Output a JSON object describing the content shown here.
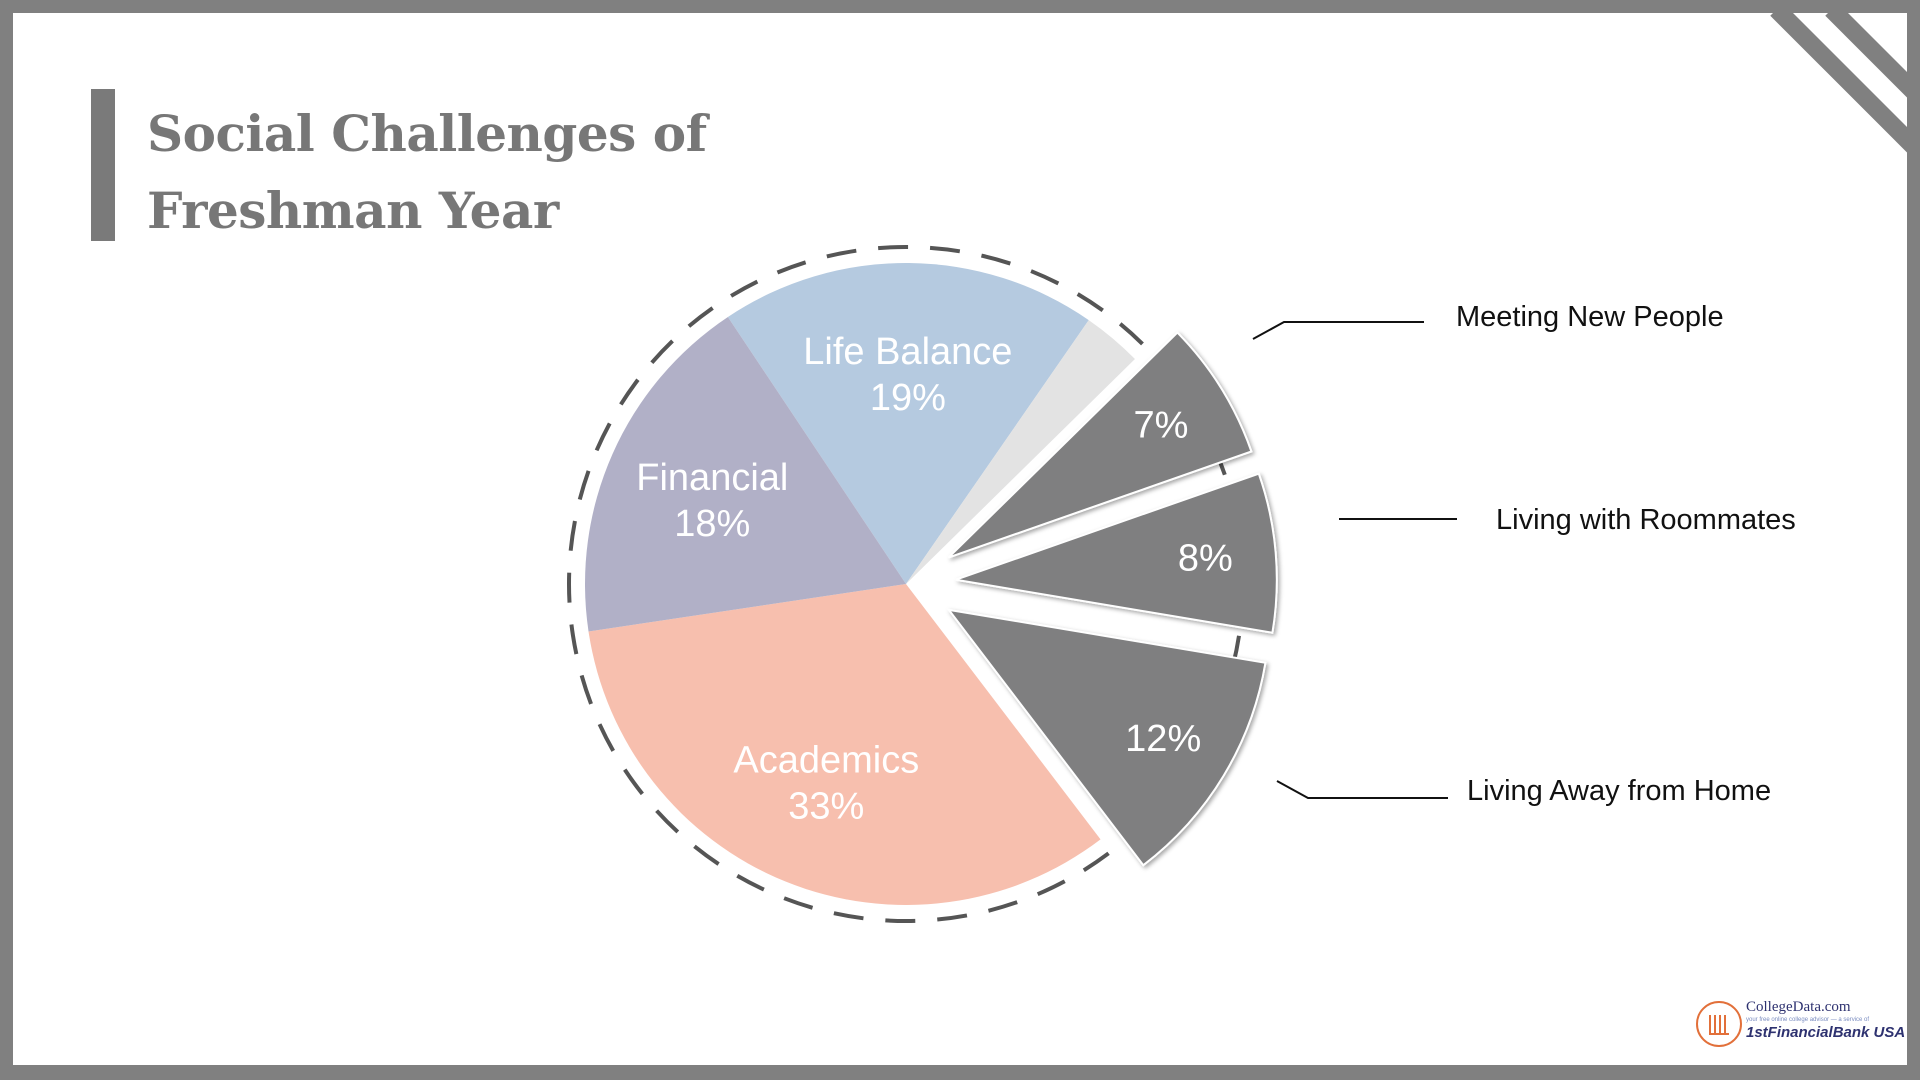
{
  "title": {
    "line1": "Social Challenges of",
    "line2": "Freshman Year"
  },
  "chart_data": {
    "type": "pie",
    "title": "Social Challenges of Freshman Year",
    "start_angle_deg": -33.7,
    "direction": "clockwise",
    "slices": [
      {
        "name": "Life Balance",
        "value": 19,
        "label": "19%",
        "color": "#b5cae0",
        "exploded": false
      },
      {
        "name": "",
        "value": 3,
        "label": "",
        "color": "#e3e3e3",
        "exploded": false
      },
      {
        "name": "Meeting New People",
        "value": 7,
        "label": "7%",
        "color": "#7f7f80",
        "exploded": true
      },
      {
        "name": "Living with Roommates",
        "value": 8,
        "label": "8%",
        "color": "#7f7f80",
        "exploded": true
      },
      {
        "name": "Living Away from Home",
        "value": 12,
        "label": "12%",
        "color": "#7f7f80",
        "exploded": true
      },
      {
        "name": "Academics",
        "value": 33,
        "label": "33%",
        "color": "#f7bfae",
        "exploded": false
      },
      {
        "name": "Financial",
        "value": 18,
        "label": "18%",
        "color": "#b1b0c7",
        "exploded": false
      }
    ],
    "dashed_outline": true,
    "callout_labels": [
      "Meeting New People",
      "Living with Roommates",
      "Living Away from Home"
    ]
  },
  "logo": {
    "line1": "CollegeData.com",
    "line2": "your free online college advisor — a service of",
    "line3": "1stFinancialBank USA"
  },
  "colors": {
    "frame": "#808080",
    "title": "#777777",
    "accent_gray": "#7f7f80"
  }
}
